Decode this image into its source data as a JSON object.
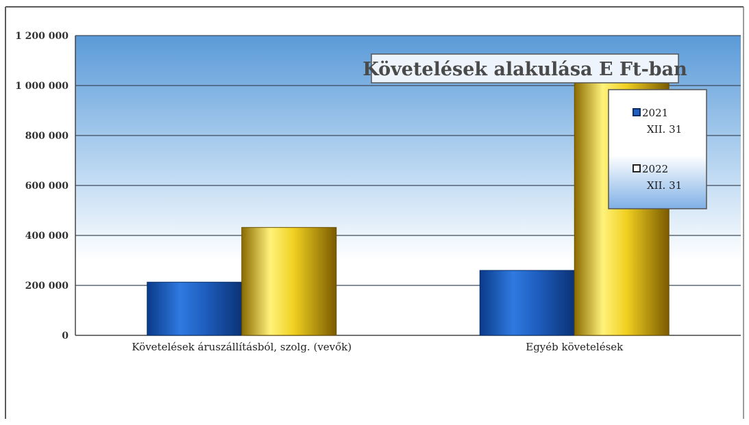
{
  "chart_data": {
    "type": "bar",
    "title": "Követelések alakulása E Ft-ban",
    "categories": [
      "Követelések áruszállításból, szolg. (vevők)",
      "Egyéb követelések"
    ],
    "series": [
      {
        "name": "2021 XII. 31",
        "legend_lines": [
          "2021",
          "XII. 31"
        ],
        "color": "#1f5fbf",
        "values": [
          213000,
          260000
        ]
      },
      {
        "name": "2022 XII. 31",
        "legend_lines": [
          "2022",
          "XII. 31"
        ],
        "color": "#e8c21a",
        "values": [
          432000,
          1012000
        ]
      }
    ],
    "y_ticks": [
      {
        "value": 0,
        "label": "0"
      },
      {
        "value": 200000,
        "label": "200 000"
      },
      {
        "value": 400000,
        "label": "400 000"
      },
      {
        "value": 600000,
        "label": "600 000"
      },
      {
        "value": 800000,
        "label": "800 000"
      },
      {
        "value": 1000000,
        "label": "1 000 000"
      },
      {
        "value": 1200000,
        "label": "1 200 000"
      }
    ],
    "ylim": [
      0,
      1200000
    ],
    "grid": true,
    "legend_position": "right"
  }
}
